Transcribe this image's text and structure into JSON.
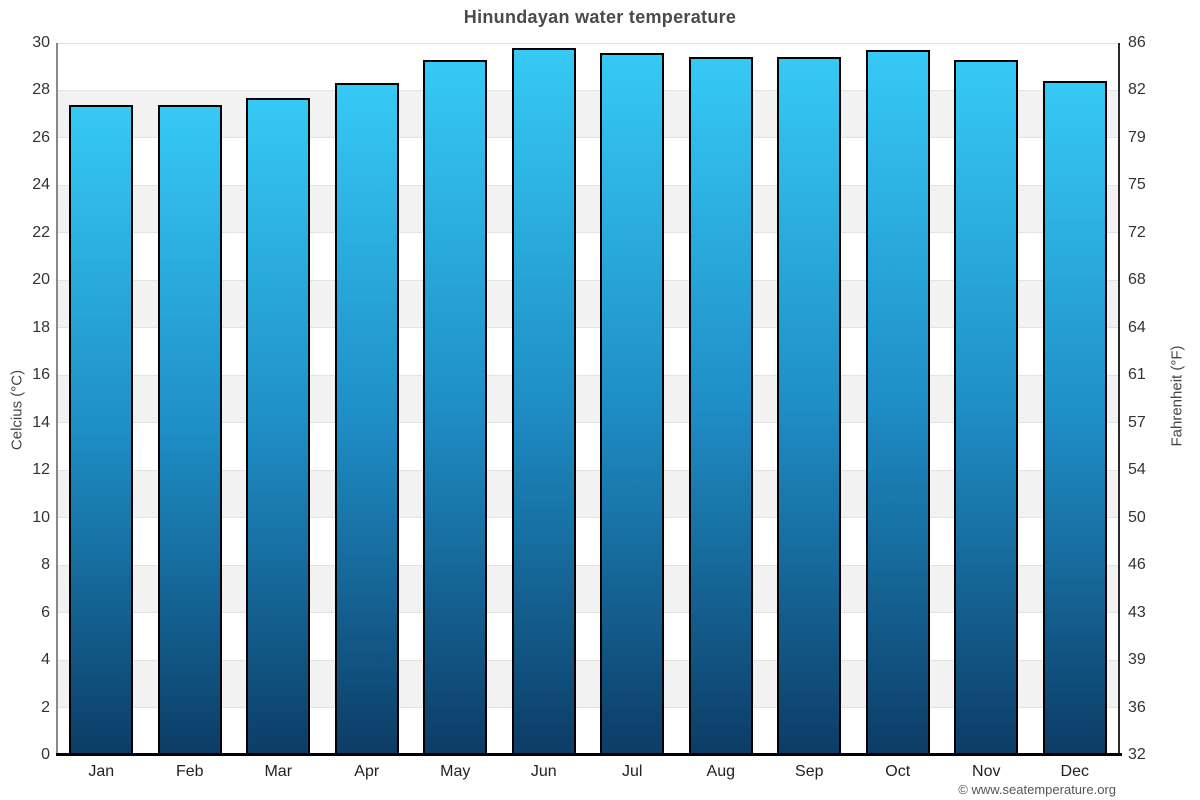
{
  "chart_data": {
    "type": "bar",
    "title": "Hinundayan water temperature",
    "categories": [
      "Jan",
      "Feb",
      "Mar",
      "Apr",
      "May",
      "Jun",
      "Jul",
      "Aug",
      "Sep",
      "Oct",
      "Nov",
      "Dec"
    ],
    "values": [
      27.4,
      27.4,
      27.7,
      28.3,
      29.3,
      29.8,
      29.6,
      29.4,
      29.4,
      29.7,
      29.3,
      28.4
    ],
    "unit": "°C",
    "ylabel_left": "Celcius (°C)",
    "ylabel_right": "Fahrenheit (°F)",
    "ylim": [
      0,
      30
    ],
    "yticks_celsius": [
      30,
      28,
      26,
      24,
      22,
      20,
      18,
      16,
      14,
      12,
      10,
      8,
      6,
      4,
      2,
      0
    ],
    "yticks_fahrenheit": [
      86,
      82,
      79,
      75,
      72,
      68,
      64,
      61,
      57,
      54,
      50,
      46,
      43,
      39,
      36,
      32
    ],
    "grid": "alternating horizontal bands, light gridline every 2°C",
    "legend": "none",
    "colors": {
      "bar_gradient_top": "#36c9f6",
      "bar_gradient_mid": "#1e8ec6",
      "bar_gradient_bottom": "#0c3c66",
      "bar_border": "#000000",
      "band_light": "#ffffff",
      "band_shade": "#f2f2f2",
      "gridline": "#e2e2e2",
      "title": "#4a4a4a"
    }
  },
  "footer": {
    "attribution": "© www.seatemperature.org"
  }
}
